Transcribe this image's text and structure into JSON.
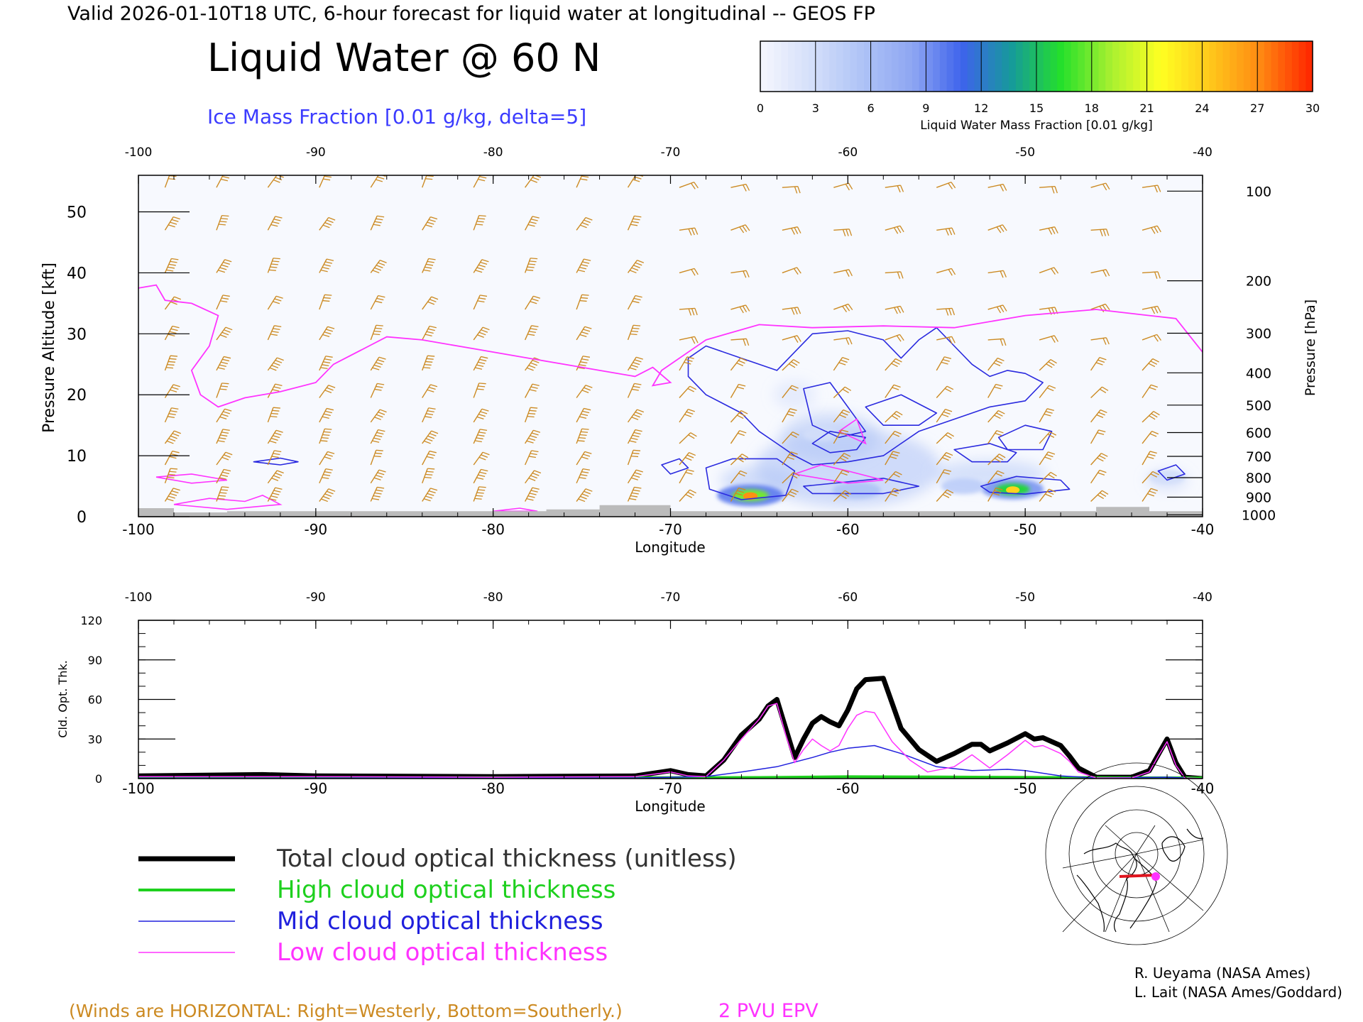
{
  "header": {
    "valid_line": "Valid 2026-01-10T18 UTC, 6-hour forecast for liquid water at longitudinal -- GEOS FP",
    "title": "Liquid Water @ 60 N",
    "subtitle": "Ice Mass Fraction [0.01 g/kg, delta=5]"
  },
  "colors": {
    "ice_contour": "#2a2adf",
    "epv": "#ff33ff",
    "wind": "#cc8a22",
    "total": "#000000",
    "high": "#1ed01e",
    "mid": "#2020dd",
    "low": "#ff33ff",
    "ground": "#bbbbbb"
  },
  "colorbar": {
    "ticks": [
      "0",
      "3",
      "6",
      "9",
      "12",
      "15",
      "18",
      "21",
      "24",
      "27",
      "30"
    ],
    "label": "Liquid Water Mass Fraction [0.01 g/kg]",
    "colors": [
      "#f3f5fd",
      "#d3defa",
      "#aec3f6",
      "#8ea6f2",
      "#3e63ec",
      "#169a9a",
      "#24e02b",
      "#a8f030",
      "#ffff22",
      "#ffc81b",
      "#ff8a12",
      "#ff2a00"
    ]
  },
  "chart_data": [
    {
      "type": "heatmap",
      "name": "cross-section",
      "xlabel": "Longitude",
      "ylabel_left": "Pressure Altitude [kft]",
      "ylabel_right": "Pressure [hPa]",
      "xlim": [
        -100,
        -40
      ],
      "ylim": [
        0,
        56
      ],
      "x_ticks": [
        "-100",
        "-90",
        "-80",
        "-70",
        "-60",
        "-50",
        "-40"
      ],
      "y_ticks": [
        "0",
        "10",
        "20",
        "30",
        "40",
        "50"
      ],
      "pressure_ticks": [
        {
          "label": "100",
          "kft": 53.4
        },
        {
          "label": "200",
          "kft": 38.7
        },
        {
          "label": "300",
          "kft": 30.1
        },
        {
          "label": "400",
          "kft": 23.6
        },
        {
          "label": "500",
          "kft": 18.3
        },
        {
          "label": "600",
          "kft": 13.8
        },
        {
          "label": "700",
          "kft": 9.9
        },
        {
          "label": "800",
          "kft": 6.4
        },
        {
          "label": "900",
          "kft": 3.2
        },
        {
          "label": "1000",
          "kft": 0.3
        }
      ],
      "liquid_water_blobs": [
        {
          "lon": -65.5,
          "kft": 3.5,
          "value": 18
        },
        {
          "lon": -59.5,
          "kft": 4.3,
          "value": 10
        },
        {
          "lon": -50.7,
          "kft": 4.5,
          "value": 16
        },
        {
          "lon": -53.5,
          "kft": 5.0,
          "value": 8
        },
        {
          "lon": -61.5,
          "kft": 13.5,
          "value": 5
        },
        {
          "lon": -42,
          "kft": 6.5,
          "value": 5
        }
      ],
      "epv_2pvu_line": [
        [
          -100,
          37.5
        ],
        [
          -99,
          38
        ],
        [
          -98.5,
          35.5
        ],
        [
          -97,
          35
        ],
        [
          -95.5,
          33
        ],
        [
          -96,
          28
        ],
        [
          -97,
          24
        ],
        [
          -96.5,
          20
        ],
        [
          -95.5,
          18
        ],
        [
          -94,
          19.5
        ],
        [
          -92,
          20.5
        ],
        [
          -90,
          22
        ],
        [
          -89,
          25
        ],
        [
          -87,
          28
        ],
        [
          -86,
          29.5
        ],
        [
          -84,
          29
        ],
        [
          -81,
          27.5
        ],
        [
          -79,
          26.5
        ],
        [
          -76,
          25
        ],
        [
          -74,
          24
        ],
        [
          -72,
          23
        ],
        [
          -71,
          24.5
        ],
        [
          -70,
          22
        ],
        [
          -71,
          21.5
        ],
        [
          -70.5,
          24
        ],
        [
          -68,
          29
        ],
        [
          -65,
          31.5
        ],
        [
          -62,
          31
        ],
        [
          -58,
          31.3
        ],
        [
          -54,
          31
        ],
        [
          -50,
          33
        ],
        [
          -46,
          34
        ],
        [
          -43,
          33
        ],
        [
          -41.5,
          32.5
        ],
        [
          -40,
          27
        ]
      ],
      "winds_note": "(Winds are HORIZONTAL: Right=Westerly, Bottom=Southerly.)",
      "epv_label": "2 PVU EPV",
      "ground_levels_kft": [
        [
          -100,
          1.4
        ],
        [
          -98,
          1.4
        ],
        [
          -98,
          0.7
        ],
        [
          -95,
          0.7
        ],
        [
          -95,
          0.9
        ],
        [
          -86,
          0.9
        ],
        [
          -77,
          0.9
        ],
        [
          -77,
          1.2
        ],
        [
          -74,
          1.2
        ],
        [
          -74,
          1.9
        ],
        [
          -70,
          1.9
        ],
        [
          -70,
          0.9
        ],
        [
          -48,
          0.9
        ],
        [
          -46,
          0.9
        ],
        [
          -46,
          1.6
        ],
        [
          -43,
          1.6
        ],
        [
          -43,
          0.9
        ],
        [
          -40,
          0.9
        ]
      ]
    },
    {
      "type": "line",
      "name": "cloud optical thickness",
      "xlabel": "Longitude",
      "ylabel": "Cld. Opt. Thk.",
      "xlim": [
        -100,
        -40
      ],
      "ylim": [
        0,
        120
      ],
      "x_ticks": [
        "-100",
        "-90",
        "-80",
        "-70",
        "-60",
        "-50",
        "-40"
      ],
      "y_ticks": [
        "0",
        "30",
        "60",
        "90",
        "120"
      ],
      "series": [
        {
          "name": "Total cloud optical thickness (unitless)",
          "color": "#000000",
          "width": 7,
          "points": [
            [
              -100,
              2
            ],
            [
              -93,
              3
            ],
            [
              -90,
              2
            ],
            [
              -80,
              1.5
            ],
            [
              -72,
              2
            ],
            [
              -70,
              6
            ],
            [
              -69,
              3
            ],
            [
              -68,
              2
            ],
            [
              -67,
              14
            ],
            [
              -66,
              33
            ],
            [
              -65,
              45
            ],
            [
              -64.5,
              55
            ],
            [
              -64,
              60
            ],
            [
              -63.5,
              38
            ],
            [
              -63,
              16
            ],
            [
              -62.5,
              30
            ],
            [
              -62,
              42
            ],
            [
              -61.5,
              47
            ],
            [
              -61,
              43
            ],
            [
              -60.5,
              40
            ],
            [
              -60,
              52
            ],
            [
              -59.5,
              68
            ],
            [
              -59,
              75
            ],
            [
              -58,
              76
            ],
            [
              -57.5,
              57
            ],
            [
              -57,
              38
            ],
            [
              -56,
              22
            ],
            [
              -55,
              13
            ],
            [
              -54,
              19
            ],
            [
              -53,
              26
            ],
            [
              -52.5,
              26
            ],
            [
              -52,
              21
            ],
            [
              -51,
              27
            ],
            [
              -50,
              34
            ],
            [
              -49.5,
              30
            ],
            [
              -49,
              31
            ],
            [
              -48,
              25
            ],
            [
              -47.5,
              17
            ],
            [
              -47,
              8
            ],
            [
              -46,
              1
            ],
            [
              -44,
              1
            ],
            [
              -43,
              6
            ],
            [
              -42.5,
              18
            ],
            [
              -42,
              30
            ],
            [
              -41.5,
              12
            ],
            [
              -41,
              1
            ],
            [
              -40,
              0
            ]
          ]
        },
        {
          "name": "High cloud optical thickness",
          "color": "#1ed01e",
          "width": 4,
          "points": [
            [
              -100,
              0.6
            ],
            [
              -80,
              0.6
            ],
            [
              -70,
              0.7
            ],
            [
              -65,
              0.8
            ],
            [
              -60,
              1.4
            ],
            [
              -55,
              1.2
            ],
            [
              -50,
              0.9
            ],
            [
              -45,
              0.6
            ],
            [
              -40,
              0.5
            ]
          ]
        },
        {
          "name": "Mid cloud optical thickness",
          "color": "#2020dd",
          "width": 1.5,
          "points": [
            [
              -100,
              0.3
            ],
            [
              -72,
              0.5
            ],
            [
              -70,
              1
            ],
            [
              -68,
              1.5
            ],
            [
              -66,
              5
            ],
            [
              -64,
              9
            ],
            [
              -62,
              16
            ],
            [
              -61,
              20
            ],
            [
              -60,
              23
            ],
            [
              -58.5,
              25
            ],
            [
              -57,
              19
            ],
            [
              -55,
              9
            ],
            [
              -53,
              6
            ],
            [
              -51,
              7
            ],
            [
              -50,
              6
            ],
            [
              -48,
              2
            ],
            [
              -46,
              0.5
            ],
            [
              -42,
              1
            ],
            [
              -41,
              0.5
            ],
            [
              -40,
              0
            ]
          ]
        },
        {
          "name": "Low cloud optical thickness",
          "color": "#ff33ff",
          "width": 1.5,
          "points": [
            [
              -100,
              1.5
            ],
            [
              -90,
              1.5
            ],
            [
              -80,
              1
            ],
            [
              -72,
              1.5
            ],
            [
              -70,
              5
            ],
            [
              -69,
              2
            ],
            [
              -68,
              1.5
            ],
            [
              -67,
              14
            ],
            [
              -66,
              30
            ],
            [
              -65,
              45
            ],
            [
              -64.5,
              55
            ],
            [
              -64,
              57
            ],
            [
              -63.5,
              33
            ],
            [
              -63,
              12
            ],
            [
              -62.5,
              22
            ],
            [
              -62,
              30
            ],
            [
              -61.5,
              25
            ],
            [
              -61,
              21
            ],
            [
              -60.5,
              25
            ],
            [
              -60,
              38
            ],
            [
              -59.5,
              48
            ],
            [
              -59,
              51
            ],
            [
              -58.5,
              50
            ],
            [
              -57.5,
              28
            ],
            [
              -56.5,
              14
            ],
            [
              -55.5,
              5
            ],
            [
              -54,
              9
            ],
            [
              -53,
              18
            ],
            [
              -52.5,
              13
            ],
            [
              -52,
              8
            ],
            [
              -51,
              18
            ],
            [
              -50,
              29
            ],
            [
              -49.5,
              24
            ],
            [
              -49,
              25
            ],
            [
              -48,
              19
            ],
            [
              -47.5,
              13
            ],
            [
              -47,
              5
            ],
            [
              -46,
              0.5
            ],
            [
              -44,
              0.5
            ],
            [
              -43,
              5
            ],
            [
              -42.5,
              17
            ],
            [
              -42,
              28
            ],
            [
              -41.5,
              10
            ],
            [
              -41,
              0.5
            ],
            [
              -40,
              0
            ]
          ]
        }
      ]
    }
  ],
  "credits": {
    "line1": "R. Ueyama (NASA Ames)",
    "line2": "L. Lait (NASA Ames/Goddard)"
  },
  "map": {
    "icon": "polar-map-icon"
  }
}
